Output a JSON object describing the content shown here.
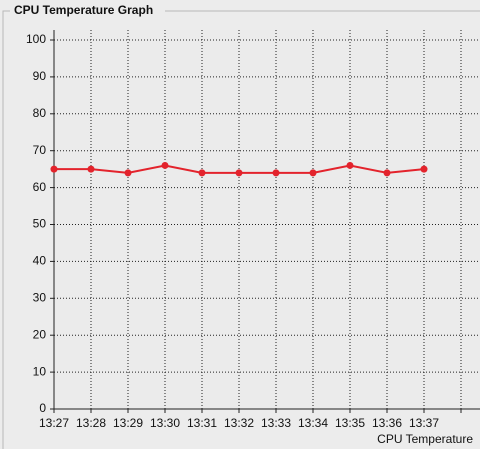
{
  "panel_title": "CPU Temperature Graph",
  "chart_data": {
    "type": "line",
    "categories": [
      "13:27",
      "13:28",
      "13:29",
      "13:30",
      "13:31",
      "13:32",
      "13:33",
      "13:34",
      "13:35",
      "13:36",
      "13:37",
      null
    ],
    "series": [
      {
        "name": "CPU Temperature",
        "color": "#e3232c",
        "values": [
          65,
          65,
          64,
          66,
          64,
          64,
          64,
          64,
          66,
          64,
          65,
          null
        ]
      }
    ],
    "ylim": [
      0,
      100
    ],
    "yticks": [
      0,
      10,
      20,
      30,
      40,
      50,
      60,
      70,
      80,
      90,
      100
    ],
    "grid": true,
    "legend": "bottom-right"
  }
}
